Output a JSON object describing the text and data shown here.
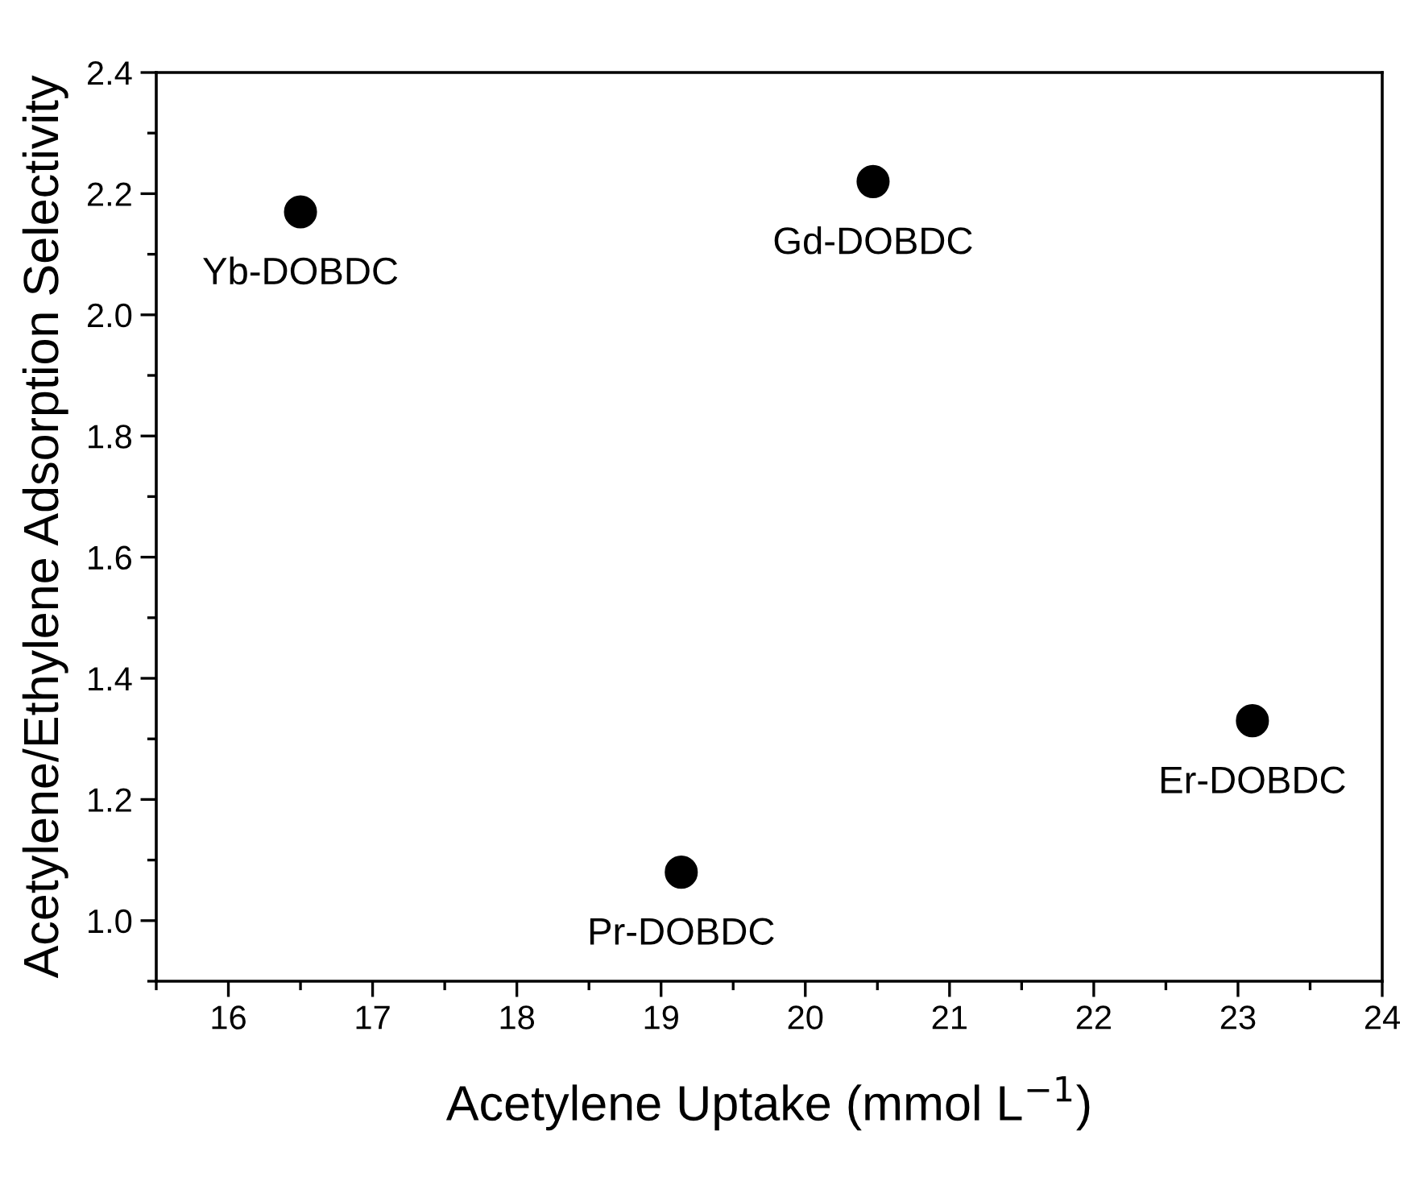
{
  "chart_data": {
    "type": "scatter",
    "xlabel": "Acetylene Uptake (mmol L$^{−1}$)",
    "ylabel": "Acetylene/Ethylene Adsorption Selectivity",
    "x": [
      16.5,
      20.47,
      19.14,
      23.1
    ],
    "series": [
      {
        "color": "#000000",
        "values": [
          2.17,
          2.22,
          1.08,
          1.33
        ]
      }
    ],
    "marker": "circle",
    "xlim": [
      15.5,
      24
    ],
    "ylim": [
      0.9,
      2.4
    ],
    "xticks": [
      {
        "value": 15.5,
        "label": null
      },
      16,
      {
        "value": 16.5,
        "label": null
      },
      17,
      {
        "value": 17.5,
        "label": null
      },
      18,
      {
        "value": 18.5,
        "label": null
      },
      19,
      {
        "value": 19.5,
        "label": null
      },
      20,
      {
        "value": 20.5,
        "label": null
      },
      21,
      {
        "value": 21.5,
        "label": null
      },
      22,
      {
        "value": 22.5,
        "label": null
      },
      23,
      {
        "value": 23.5,
        "label": null
      },
      24
    ],
    "yticks": [
      {
        "value": 0.9,
        "label": null
      },
      {
        "value": 1.0,
        "label": "1.0"
      },
      {
        "value": 1.1,
        "label": null
      },
      1.2,
      {
        "value": 1.3,
        "label": null
      },
      1.4,
      {
        "value": 1.5,
        "label": null
      },
      1.6,
      {
        "value": 1.7,
        "label": null
      },
      1.8,
      {
        "value": 1.9,
        "label": null
      },
      {
        "value": 2.0,
        "label": "2.0"
      },
      {
        "value": 2.1,
        "label": null
      },
      2.2,
      {
        "value": 2.3,
        "label": null
      },
      2.4
    ],
    "annotations": [
      {
        "text": "Yb-DOBDC",
        "x": 16.5,
        "y": 2.17
      },
      {
        "text": "Gd-DOBDC",
        "x": 20.47,
        "y": 2.22
      },
      {
        "text": "Pr-DOBDC",
        "x": 19.14,
        "y": 1.08
      },
      {
        "text": "Er-DOBDC",
        "x": 23.1,
        "y": 1.33
      }
    ],
    "grid": false
  }
}
